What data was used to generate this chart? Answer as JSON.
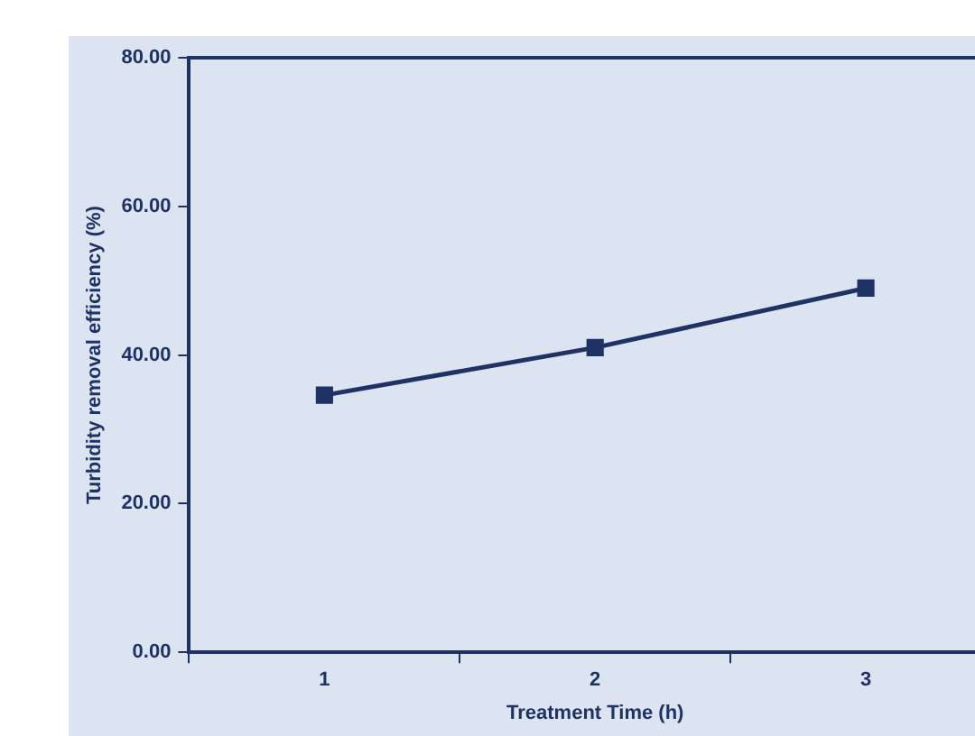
{
  "chart_data": {
    "type": "line",
    "xlabel": "Treatment Time (h)",
    "ylabel": "Turbidity removal efficiency (%)",
    "categories": [
      "1",
      "2",
      "3"
    ],
    "series": [
      {
        "color": "#1f3264",
        "values": [
          34.6,
          41.0,
          49.0
        ]
      }
    ],
    "ylim": [
      0,
      80
    ],
    "yticks": [
      {
        "value": 0,
        "label": "0.00"
      },
      {
        "value": 20,
        "label": "20.00"
      },
      {
        "value": 40,
        "label": "40.00"
      },
      {
        "value": 60,
        "label": "60.00"
      },
      {
        "value": 80,
        "label": "80.00"
      }
    ],
    "grid": false,
    "legend": false,
    "marker": "square",
    "line_style": "solid"
  }
}
